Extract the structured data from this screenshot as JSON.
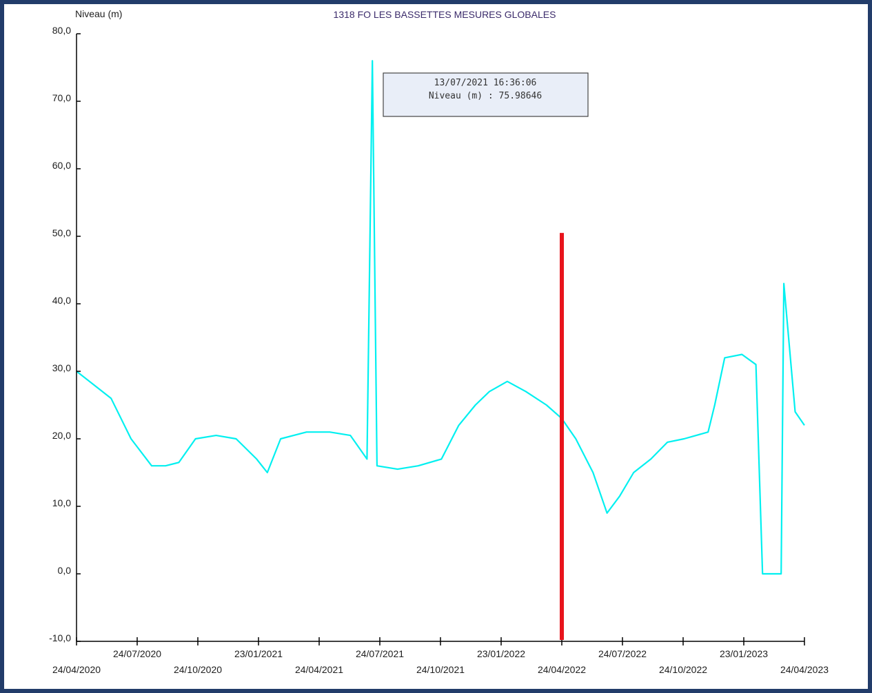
{
  "chart_data": {
    "type": "line",
    "title": "1318 FO LES BASSETTES MESURES GLOBALES",
    "ylabel": "Niveau (m)",
    "xlabel": "",
    "ylim": [
      -10,
      80
    ],
    "yticks": [
      "-10,0",
      "0,0",
      "10,0",
      "20,0",
      "30,0",
      "40,0",
      "50,0",
      "60,0",
      "70,0",
      "80,0"
    ],
    "xlim": [
      "2020-04-24",
      "2023-04-24"
    ],
    "xticks": [
      "24/04/2020",
      "24/07/2020",
      "24/10/2020",
      "23/01/2021",
      "24/04/2021",
      "24/07/2021",
      "24/10/2021",
      "23/01/2022",
      "24/04/2022",
      "24/07/2022",
      "24/10/2022",
      "23/01/2023",
      "24/04/2023"
    ],
    "grid": false,
    "series": [
      {
        "color": "#00f0f0",
        "x": [
          "2020-04-24",
          "2020-05-20",
          "2020-06-15",
          "2020-07-15",
          "2020-08-15",
          "2020-09-05",
          "2020-09-25",
          "2020-10-20",
          "2020-11-20",
          "2020-12-20",
          "2021-01-20",
          "2021-02-05",
          "2021-02-25",
          "2021-04-05",
          "2021-05-10",
          "2021-06-10",
          "2021-07-05",
          "2021-07-13",
          "2021-07-20",
          "2021-08-20",
          "2021-09-20",
          "2021-10-25",
          "2021-11-20",
          "2021-12-15",
          "2022-01-05",
          "2022-02-01",
          "2022-03-01",
          "2022-04-01",
          "2022-04-24",
          "2022-05-15",
          "2022-06-10",
          "2022-07-01",
          "2022-07-20",
          "2022-08-10",
          "2022-09-05",
          "2022-09-30",
          "2022-10-25",
          "2022-11-30",
          "2022-12-10",
          "2022-12-25",
          "2023-01-20",
          "2023-02-10",
          "2023-02-20",
          "2023-03-20",
          "2023-03-24",
          "2023-04-10",
          "2023-04-24"
        ],
        "y": [
          30,
          28,
          26,
          20,
          16,
          16,
          16.5,
          20,
          20.5,
          20,
          17,
          15,
          20,
          21,
          21,
          20.5,
          17,
          76,
          16,
          15.5,
          16,
          17,
          22,
          25,
          27,
          28.5,
          27,
          25,
          23,
          20,
          15,
          9,
          11.5,
          15,
          17,
          19.5,
          20,
          21,
          25,
          32,
          32.5,
          31,
          0,
          0,
          43,
          24,
          22
        ]
      }
    ],
    "tooltip": {
      "line1": "13/07/2021 16:36:06",
      "line2": "Niveau (m) : 75.98646"
    },
    "annotations": [
      {
        "type": "vertical-line",
        "color": "#e8141c",
        "x": "2022-04-24",
        "y_range": [
          -10,
          50.5
        ]
      }
    ]
  }
}
